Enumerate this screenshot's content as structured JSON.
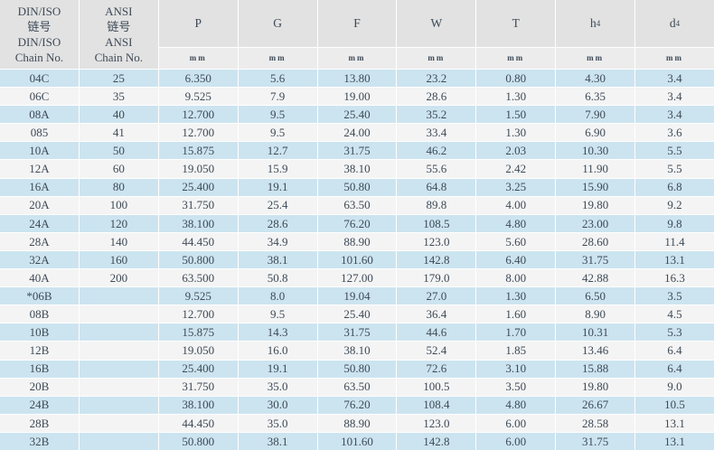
{
  "colors": {
    "header_bg": "#e2e2e2",
    "unit_bg": "#ececec",
    "row_blue": "#cce4f0",
    "row_white": "#f4f4f4",
    "separator": "#ffffff",
    "text": "#3d4956"
  },
  "table": {
    "header": {
      "din_iso_column": "DIN/ISO\n链号\nDIN/ISO\nChain No.",
      "ansi_column": "ANSI\n链号\nANSI\nChain No.",
      "dim_columns": [
        {
          "base": "P",
          "sub": ""
        },
        {
          "base": "G",
          "sub": ""
        },
        {
          "base": "F",
          "sub": ""
        },
        {
          "base": "W",
          "sub": ""
        },
        {
          "base": "T",
          "sub": ""
        },
        {
          "base": "h",
          "sub": "4"
        },
        {
          "base": "d",
          "sub": "4"
        }
      ],
      "unit_label": "mm"
    },
    "rows": [
      {
        "chain_no": "04C",
        "ansi_no": "25",
        "values": [
          "6.350",
          "5.6",
          "13.80",
          "23.2",
          "0.80",
          "4.30",
          "3.4"
        ]
      },
      {
        "chain_no": "06C",
        "ansi_no": "35",
        "values": [
          "9.525",
          "7.9",
          "19.00",
          "28.6",
          "1.30",
          "6.35",
          "3.4"
        ]
      },
      {
        "chain_no": "08A",
        "ansi_no": "40",
        "values": [
          "12.700",
          "9.5",
          "25.40",
          "35.2",
          "1.50",
          "7.90",
          "3.4"
        ]
      },
      {
        "chain_no": "085",
        "ansi_no": "41",
        "values": [
          "12.700",
          "9.5",
          "24.00",
          "33.4",
          "1.30",
          "6.90",
          "3.6"
        ]
      },
      {
        "chain_no": "10A",
        "ansi_no": "50",
        "values": [
          "15.875",
          "12.7",
          "31.75",
          "46.2",
          "2.03",
          "10.30",
          "5.5"
        ]
      },
      {
        "chain_no": "12A",
        "ansi_no": "60",
        "values": [
          "19.050",
          "15.9",
          "38.10",
          "55.6",
          "2.42",
          "11.90",
          "5.5"
        ]
      },
      {
        "chain_no": "16A",
        "ansi_no": "80",
        "values": [
          "25.400",
          "19.1",
          "50.80",
          "64.8",
          "3.25",
          "15.90",
          "6.8"
        ]
      },
      {
        "chain_no": "20A",
        "ansi_no": "100",
        "values": [
          "31.750",
          "25.4",
          "63.50",
          "89.8",
          "4.00",
          "19.80",
          "9.2"
        ]
      },
      {
        "chain_no": "24A",
        "ansi_no": "120",
        "values": [
          "38.100",
          "28.6",
          "76.20",
          "108.5",
          "4.80",
          "23.00",
          "9.8"
        ]
      },
      {
        "chain_no": "28A",
        "ansi_no": "140",
        "values": [
          "44.450",
          "34.9",
          "88.90",
          "123.0",
          "5.60",
          "28.60",
          "11.4"
        ]
      },
      {
        "chain_no": "32A",
        "ansi_no": "160",
        "values": [
          "50.800",
          "38.1",
          "101.60",
          "142.8",
          "6.40",
          "31.75",
          "13.1"
        ]
      },
      {
        "chain_no": "40A",
        "ansi_no": "200",
        "values": [
          "63.500",
          "50.8",
          "127.00",
          "179.0",
          "8.00",
          "42.88",
          "16.3"
        ]
      },
      {
        "chain_no": "*06B",
        "ansi_no": "",
        "values": [
          "9.525",
          "8.0",
          "19.04",
          "27.0",
          "1.30",
          "6.50",
          "3.5"
        ]
      },
      {
        "chain_no": "08B",
        "ansi_no": "",
        "values": [
          "12.700",
          "9.5",
          "25.40",
          "36.4",
          "1.60",
          "8.90",
          "4.5"
        ]
      },
      {
        "chain_no": "10B",
        "ansi_no": "",
        "values": [
          "15.875",
          "14.3",
          "31.75",
          "44.6",
          "1.70",
          "10.31",
          "5.3"
        ]
      },
      {
        "chain_no": "12B",
        "ansi_no": "",
        "values": [
          "19.050",
          "16.0",
          "38.10",
          "52.4",
          "1.85",
          "13.46",
          "6.4"
        ]
      },
      {
        "chain_no": "16B",
        "ansi_no": "",
        "values": [
          "25.400",
          "19.1",
          "50.80",
          "72.6",
          "3.10",
          "15.88",
          "6.4"
        ]
      },
      {
        "chain_no": "20B",
        "ansi_no": "",
        "values": [
          "31.750",
          "35.0",
          "63.50",
          "100.5",
          "3.50",
          "19.80",
          "9.0"
        ]
      },
      {
        "chain_no": "24B",
        "ansi_no": "",
        "values": [
          "38.100",
          "30.0",
          "76.20",
          "108.4",
          "4.80",
          "26.67",
          "10.5"
        ]
      },
      {
        "chain_no": "28B",
        "ansi_no": "",
        "values": [
          "44.450",
          "35.0",
          "88.90",
          "123.0",
          "6.00",
          "28.58",
          "13.1"
        ]
      },
      {
        "chain_no": "32B",
        "ansi_no": "",
        "values": [
          "50.800",
          "38.1",
          "101.60",
          "142.8",
          "6.00",
          "31.75",
          "13.1"
        ]
      }
    ]
  }
}
